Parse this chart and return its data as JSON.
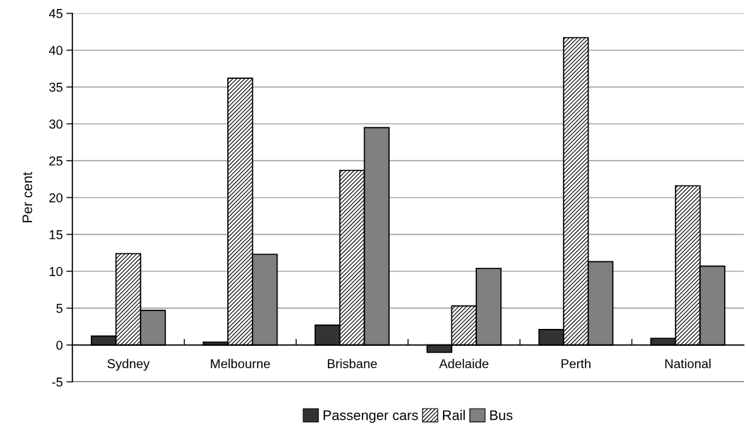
{
  "chart_data": {
    "type": "bar",
    "ylabel": "Per cent",
    "categories": [
      "Sydney",
      "Melbourne",
      "Brisbane",
      "Adelaide",
      "Perth",
      "National"
    ],
    "series": [
      {
        "name": "Passenger cars",
        "color": "#333333",
        "values": [
          1.2,
          0.4,
          2.7,
          -1.0,
          2.1,
          0.9
        ]
      },
      {
        "name": "Rail",
        "color": "#000000",
        "values": [
          12.4,
          36.2,
          23.7,
          5.3,
          41.7,
          21.6
        ]
      },
      {
        "name": "Bus",
        "color": "#808080",
        "values": [
          4.7,
          12.3,
          29.5,
          10.4,
          11.3,
          10.7
        ]
      }
    ],
    "ylim": [
      -5,
      45
    ],
    "yticks": [
      -5,
      0,
      5,
      10,
      15,
      20,
      25,
      30,
      35,
      40,
      45
    ],
    "grid": "y",
    "legend": "bottom"
  }
}
